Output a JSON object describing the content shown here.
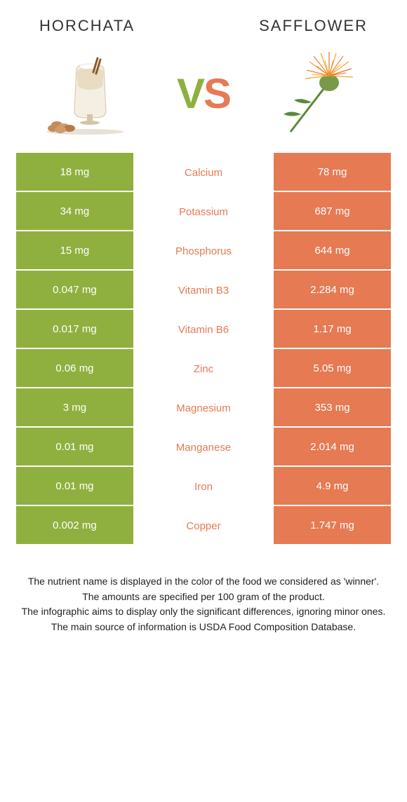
{
  "colors": {
    "left_bg": "#8fb03f",
    "right_bg": "#e67a53",
    "text_white": "#ffffff"
  },
  "left_food": "HORCHATA",
  "right_food": "SAFFLOWER",
  "vs_v": "V",
  "vs_s": "S",
  "rows": [
    {
      "left": "18 mg",
      "label": "Calcium",
      "right": "78 mg",
      "winner": "right"
    },
    {
      "left": "34 mg",
      "label": "Potassium",
      "right": "687 mg",
      "winner": "right"
    },
    {
      "left": "15 mg",
      "label": "Phosphorus",
      "right": "644 mg",
      "winner": "right"
    },
    {
      "left": "0.047 mg",
      "label": "Vitamin B3",
      "right": "2.284 mg",
      "winner": "right"
    },
    {
      "left": "0.017 mg",
      "label": "Vitamin B6",
      "right": "1.17 mg",
      "winner": "right"
    },
    {
      "left": "0.06 mg",
      "label": "Zinc",
      "right": "5.05 mg",
      "winner": "right"
    },
    {
      "left": "3 mg",
      "label": "Magnesium",
      "right": "353 mg",
      "winner": "right"
    },
    {
      "left": "0.01 mg",
      "label": "Manganese",
      "right": "2.014 mg",
      "winner": "right"
    },
    {
      "left": "0.01 mg",
      "label": "Iron",
      "right": "4.9 mg",
      "winner": "right"
    },
    {
      "left": "0.002 mg",
      "label": "Copper",
      "right": "1.747 mg",
      "winner": "right"
    }
  ],
  "footer": [
    "The nutrient name is displayed in the color of the food we considered as 'winner'.",
    "The amounts are specified per 100 gram of the product.",
    "The infographic aims to display only the significant differences, ignoring minor ones.",
    "The main source of information is USDA Food Composition Database."
  ]
}
